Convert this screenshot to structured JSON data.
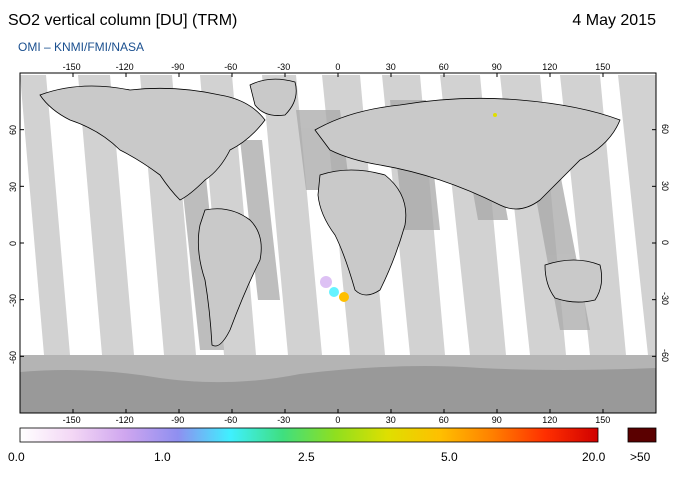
{
  "header": {
    "title": "SO2 vertical column [DU] (TRM)",
    "date": "4 May 2015",
    "source": "OMI  –  KNMI/FMI/NASA"
  },
  "map": {
    "lon_ticks_top": [
      "-150",
      "-120",
      "-90",
      "-60",
      "-30",
      "0",
      "30",
      "60",
      "90",
      "120",
      "150"
    ],
    "lon_ticks_bottom": [
      "-150",
      "-120",
      "-90",
      "-60",
      "-30",
      "0",
      "30",
      "60",
      "90",
      "120",
      "150"
    ],
    "lat_ticks": [
      "60",
      "30",
      "0",
      "-30",
      "-60"
    ],
    "lat_ticks_right": [
      "60",
      "30",
      "0",
      "-30",
      "-60"
    ],
    "lon_range": [
      -180,
      180
    ],
    "lat_range": [
      -90,
      90
    ],
    "colors": {
      "ocean": "#c4c4c4",
      "swath": "#d6d6d6",
      "gap": "#ffffff",
      "no_data": "#a6a6a6",
      "coastline": "#000000"
    }
  },
  "colorbar": {
    "labels": [
      "0.0",
      "1.0",
      "2.5",
      "5.0",
      "20.0",
      ">50"
    ],
    "stops": [
      "#ffffff",
      "#f3d7f5",
      "#cfa6ef",
      "#8f8ff0",
      "#3ff0ff",
      "#3fdf7f",
      "#8fdf1f",
      "#dfdf00",
      "#ffbf00",
      "#ff7f00",
      "#ff2f00",
      "#d00000"
    ],
    "overflow_color": "#5a0000"
  }
}
